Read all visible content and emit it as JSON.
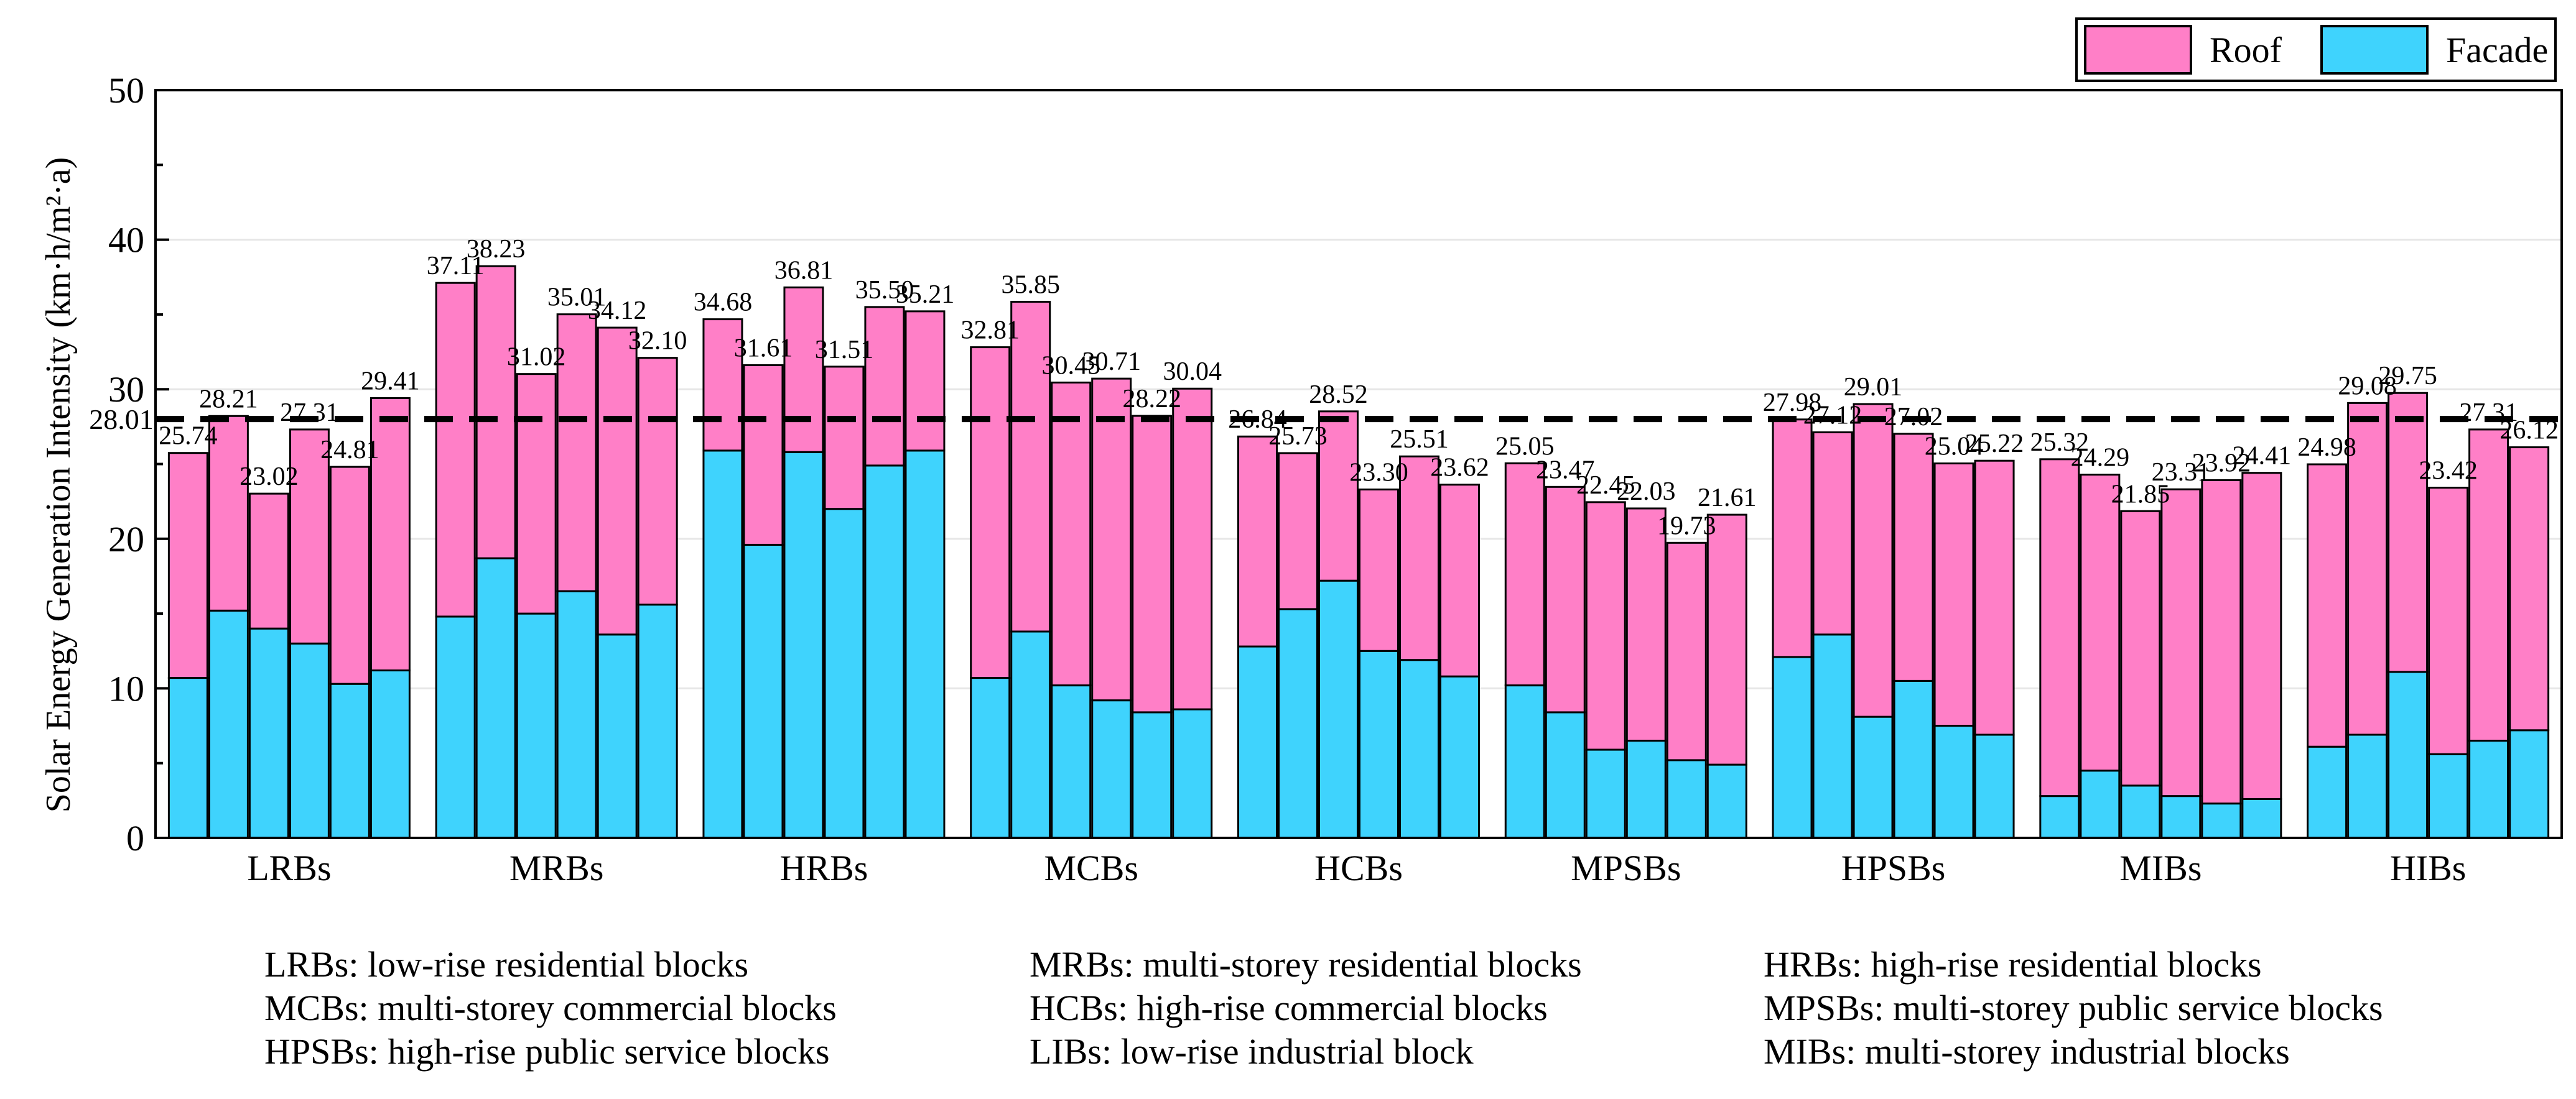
{
  "chart_data": {
    "type": "bar",
    "stacked": true,
    "ylabel": "Solar Energy Generation Intensity (km·h/m²·a)",
    "ylim": [
      0,
      50
    ],
    "yticks": [
      0,
      10,
      20,
      30,
      40,
      50
    ],
    "groups": [
      "LRBs",
      "MRBs",
      "HRBs",
      "MCBs",
      "HCBs",
      "MPSBs",
      "HPSBs",
      "MIBs",
      "HIBs"
    ],
    "series": [
      {
        "name": "Roof",
        "color": "#ff7fc7"
      },
      {
        "name": "Facade",
        "color": "#3fd3fd"
      }
    ],
    "legend_position": "top-right",
    "average_line": {
      "value": 28.01,
      "label": "28.01"
    },
    "bars": [
      [
        {
          "total": 25.74,
          "facade": 10.7
        },
        {
          "total": 28.21,
          "facade": 15.2
        },
        {
          "total": 23.02,
          "facade": 14.0
        },
        {
          "total": 27.31,
          "facade": 13.0
        },
        {
          "total": 24.81,
          "facade": 10.3
        },
        {
          "total": 29.41,
          "facade": 11.2
        }
      ],
      [
        {
          "total": 37.11,
          "facade": 14.8
        },
        {
          "total": 38.23,
          "facade": 18.7
        },
        {
          "total": 31.02,
          "facade": 15.0
        },
        {
          "total": 35.01,
          "facade": 16.5
        },
        {
          "total": 34.12,
          "facade": 13.6
        },
        {
          "total": 32.1,
          "facade": 15.6
        }
      ],
      [
        {
          "total": 34.68,
          "facade": 25.9
        },
        {
          "total": 31.61,
          "facade": 19.6
        },
        {
          "total": 36.81,
          "facade": 25.8
        },
        {
          "total": 31.51,
          "facade": 22.0
        },
        {
          "total": 35.5,
          "facade": 24.9
        },
        {
          "total": 35.21,
          "facade": 25.9
        }
      ],
      [
        {
          "total": 32.81,
          "facade": 10.7
        },
        {
          "total": 35.85,
          "facade": 13.8
        },
        {
          "total": 30.45,
          "facade": 10.2
        },
        {
          "total": 30.71,
          "facade": 9.2
        },
        {
          "total": 28.22,
          "facade": 8.4
        },
        {
          "total": 30.04,
          "facade": 8.6
        }
      ],
      [
        {
          "total": 26.84,
          "facade": 12.8
        },
        {
          "total": 25.73,
          "facade": 15.3
        },
        {
          "total": 28.52,
          "facade": 17.2
        },
        {
          "total": 23.3,
          "facade": 12.5
        },
        {
          "total": 25.51,
          "facade": 11.9
        },
        {
          "total": 23.62,
          "facade": 10.8
        }
      ],
      [
        {
          "total": 25.05,
          "facade": 10.2
        },
        {
          "total": 23.47,
          "facade": 8.4
        },
        {
          "total": 22.45,
          "facade": 5.9
        },
        {
          "total": 22.03,
          "facade": 6.5
        },
        {
          "total": 19.73,
          "facade": 5.2
        },
        {
          "total": 21.61,
          "facade": 4.9
        }
      ],
      [
        {
          "total": 27.98,
          "facade": 12.1
        },
        {
          "total": 27.12,
          "facade": 13.6
        },
        {
          "total": 29.01,
          "facade": 8.1
        },
        {
          "total": 27.02,
          "facade": 10.5
        },
        {
          "total": 25.04,
          "facade": 7.5
        },
        {
          "total": 25.22,
          "facade": 6.9
        }
      ],
      [
        {
          "total": 25.32,
          "facade": 2.8
        },
        {
          "total": 24.29,
          "facade": 4.5
        },
        {
          "total": 21.85,
          "facade": 3.5
        },
        {
          "total": 23.31,
          "facade": 2.8
        },
        {
          "total": 23.92,
          "facade": 2.3
        },
        {
          "total": 24.41,
          "facade": 2.6
        }
      ],
      [
        {
          "total": 24.98,
          "facade": 6.1
        },
        {
          "total": 29.08,
          "facade": 6.9
        },
        {
          "total": 29.75,
          "facade": 11.1
        },
        {
          "total": 23.42,
          "facade": 5.6
        },
        {
          "total": 27.31,
          "facade": 6.5
        },
        {
          "total": 26.12,
          "facade": 7.2
        }
      ]
    ]
  },
  "abbreviations": [
    "LRBs:  low-rise residential blocks",
    "MRBs: multi-storey residential blocks",
    "HRBs: high-rise residential blocks",
    "MCBs: multi-storey commercial blocks",
    "HCBs: high-rise commercial blocks",
    "MPSBs: multi-storey public service blocks",
    "HPSBs: high-rise public service blocks",
    "LIBs: low-rise industrial block",
    "MIBs: multi-storey industrial blocks"
  ]
}
